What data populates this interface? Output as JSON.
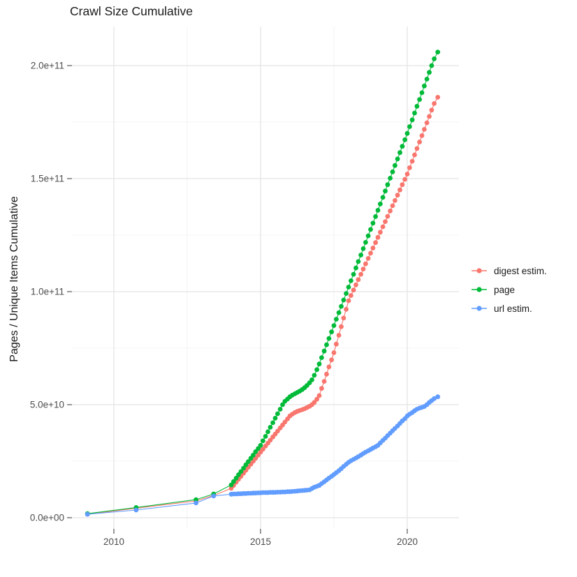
{
  "title": "Crawl Size Cumulative",
  "axes": {
    "y_title": "Pages / Unique Items Cumulative",
    "x_tick_labels": [
      "2010",
      "2015",
      "2020"
    ],
    "y_tick_labels": [
      "0.0e+00",
      "5.0e+10",
      "1.0e+11",
      "1.5e+11",
      "2.0e+11"
    ]
  },
  "legend": {
    "position": "right",
    "items": [
      {
        "label": "digest estim.",
        "color": "#F8766D"
      },
      {
        "label": "page",
        "color": "#00BA38"
      },
      {
        "label": "url estim.",
        "color": "#619CFF"
      }
    ]
  },
  "colors": {
    "background": "#ffffff",
    "grid_major": "#E4E4E4",
    "grid_minor": "#F0F0F0",
    "tick": "#333333",
    "tick_label": "#4D4D4D"
  },
  "chart_data": {
    "type": "scatter",
    "title": "Crawl Size Cumulative",
    "xlabel": "",
    "ylabel": "Pages / Unique Items Cumulative",
    "values_unit": "1e9 pages (y values below are billions)",
    "x_range": [
      2008.6,
      2021.8
    ],
    "y_range_e9": [
      0,
      215
    ],
    "x_major": [
      2010,
      2015,
      2020
    ],
    "x_minor": [
      2012.5,
      2017.5
    ],
    "y_major_e9": [
      0,
      50,
      100,
      150,
      200
    ],
    "y_minor_e9": [
      25,
      75,
      125,
      175
    ],
    "grid": true,
    "legend_position": "right",
    "series": [
      {
        "name": "digest estim.",
        "color": "#F8766D",
        "points": [
          [
            2009.1,
            1.5
          ],
          [
            2010.76,
            4.2
          ],
          [
            2012.8,
            7.4
          ],
          [
            2013.4,
            9.8
          ],
          [
            2014,
            13
          ],
          [
            2014.08,
            14.3
          ],
          [
            2014.17,
            15.7
          ],
          [
            2014.25,
            17
          ],
          [
            2014.33,
            18.3
          ],
          [
            2014.42,
            19.7
          ],
          [
            2014.5,
            21
          ],
          [
            2014.58,
            22.3
          ],
          [
            2014.67,
            23.7
          ],
          [
            2014.75,
            25
          ],
          [
            2014.83,
            26.3
          ],
          [
            2014.92,
            27.7
          ],
          [
            2015,
            29
          ],
          [
            2015.08,
            30.3
          ],
          [
            2015.17,
            31.7
          ],
          [
            2015.25,
            33
          ],
          [
            2015.33,
            34.3
          ],
          [
            2015.42,
            35.7
          ],
          [
            2015.5,
            37
          ],
          [
            2015.58,
            38.3
          ],
          [
            2015.67,
            39.7
          ],
          [
            2015.75,
            41
          ],
          [
            2015.83,
            42.3
          ],
          [
            2015.92,
            43.7
          ],
          [
            2016,
            45
          ],
          [
            2016.08,
            45.8
          ],
          [
            2016.17,
            46.5
          ],
          [
            2016.25,
            47
          ],
          [
            2016.33,
            47.4
          ],
          [
            2016.42,
            47.8
          ],
          [
            2016.5,
            48.2
          ],
          [
            2016.58,
            48.7
          ],
          [
            2016.67,
            49.3
          ],
          [
            2016.75,
            50
          ],
          [
            2016.83,
            51
          ],
          [
            2016.92,
            52.4
          ],
          [
            2017,
            54
          ],
          [
            2017.08,
            57.2
          ],
          [
            2017.17,
            60.3
          ],
          [
            2017.25,
            63.5
          ],
          [
            2017.33,
            66.7
          ],
          [
            2017.42,
            69.8
          ],
          [
            2017.5,
            73
          ],
          [
            2017.58,
            76.8
          ],
          [
            2017.67,
            80.7
          ],
          [
            2017.75,
            84.5
          ],
          [
            2017.83,
            88.3
          ],
          [
            2017.92,
            92.2
          ],
          [
            2018,
            96
          ],
          [
            2018.08,
            98.3
          ],
          [
            2018.17,
            100.7
          ],
          [
            2018.25,
            103
          ],
          [
            2018.33,
            105.3
          ],
          [
            2018.42,
            107.7
          ],
          [
            2018.5,
            110
          ],
          [
            2018.58,
            112.3
          ],
          [
            2018.67,
            114.7
          ],
          [
            2018.75,
            117
          ],
          [
            2018.83,
            119.3
          ],
          [
            2018.92,
            121.7
          ],
          [
            2019,
            124
          ],
          [
            2019.08,
            126.3
          ],
          [
            2019.17,
            128.7
          ],
          [
            2019.25,
            131
          ],
          [
            2019.33,
            133.3
          ],
          [
            2019.42,
            135.7
          ],
          [
            2019.5,
            138
          ],
          [
            2019.58,
            140.3
          ],
          [
            2019.67,
            142.7
          ],
          [
            2019.75,
            145
          ],
          [
            2019.83,
            147.3
          ],
          [
            2019.92,
            149.7
          ],
          [
            2020,
            152
          ],
          [
            2020.08,
            154.8
          ],
          [
            2020.17,
            157.7
          ],
          [
            2020.25,
            160.5
          ],
          [
            2020.33,
            163.3
          ],
          [
            2020.42,
            166.2
          ],
          [
            2020.5,
            169
          ],
          [
            2020.58,
            171.8
          ],
          [
            2020.67,
            174.7
          ],
          [
            2020.75,
            177.5
          ],
          [
            2020.83,
            180.3
          ],
          [
            2020.92,
            183.2
          ],
          [
            2021.04,
            186
          ]
        ]
      },
      {
        "name": "page",
        "color": "#00BA38",
        "points": [
          [
            2009.1,
            1.8
          ],
          [
            2010.76,
            4.5
          ],
          [
            2012.8,
            8
          ],
          [
            2013.4,
            10.5
          ],
          [
            2014,
            14.5
          ],
          [
            2014.08,
            16
          ],
          [
            2014.17,
            17.5
          ],
          [
            2014.25,
            19
          ],
          [
            2014.33,
            20.4
          ],
          [
            2014.42,
            21.9
          ],
          [
            2014.5,
            23.4
          ],
          [
            2014.58,
            24.8
          ],
          [
            2014.67,
            26.3
          ],
          [
            2014.75,
            27.7
          ],
          [
            2014.83,
            29.2
          ],
          [
            2014.92,
            30.6
          ],
          [
            2015,
            32
          ],
          [
            2015.08,
            34
          ],
          [
            2015.17,
            36
          ],
          [
            2015.25,
            38
          ],
          [
            2015.33,
            40
          ],
          [
            2015.42,
            42
          ],
          [
            2015.5,
            44
          ],
          [
            2015.58,
            46
          ],
          [
            2015.67,
            48
          ],
          [
            2015.75,
            50
          ],
          [
            2015.83,
            51.5
          ],
          [
            2015.92,
            52.5
          ],
          [
            2016,
            53.5
          ],
          [
            2016.08,
            54.2
          ],
          [
            2016.17,
            54.8
          ],
          [
            2016.25,
            55.4
          ],
          [
            2016.33,
            56
          ],
          [
            2016.42,
            56.7
          ],
          [
            2016.5,
            57.5
          ],
          [
            2016.58,
            58.5
          ],
          [
            2016.67,
            59.7
          ],
          [
            2016.75,
            61
          ],
          [
            2016.83,
            63
          ],
          [
            2016.92,
            65.5
          ],
          [
            2017,
            68
          ],
          [
            2017.08,
            70.8
          ],
          [
            2017.17,
            73.7
          ],
          [
            2017.25,
            76.5
          ],
          [
            2017.33,
            79.3
          ],
          [
            2017.42,
            82.2
          ],
          [
            2017.5,
            85
          ],
          [
            2017.58,
            87.8
          ],
          [
            2017.67,
            90.7
          ],
          [
            2017.75,
            93.5
          ],
          [
            2017.83,
            96.3
          ],
          [
            2017.92,
            99.2
          ],
          [
            2018,
            102
          ],
          [
            2018.08,
            104.8
          ],
          [
            2018.17,
            107.7
          ],
          [
            2018.25,
            110.5
          ],
          [
            2018.33,
            113.3
          ],
          [
            2018.42,
            116.2
          ],
          [
            2018.5,
            119
          ],
          [
            2018.58,
            121.8
          ],
          [
            2018.67,
            124.7
          ],
          [
            2018.75,
            127.5
          ],
          [
            2018.83,
            130.3
          ],
          [
            2018.92,
            133.2
          ],
          [
            2019,
            136
          ],
          [
            2019.08,
            138.8
          ],
          [
            2019.17,
            141.7
          ],
          [
            2019.25,
            144.5
          ],
          [
            2019.33,
            147.3
          ],
          [
            2019.42,
            150.2
          ],
          [
            2019.5,
            153
          ],
          [
            2019.58,
            155.8
          ],
          [
            2019.67,
            158.7
          ],
          [
            2019.75,
            161.5
          ],
          [
            2019.83,
            164.3
          ],
          [
            2019.92,
            167.2
          ],
          [
            2020,
            170
          ],
          [
            2020.08,
            173
          ],
          [
            2020.17,
            176
          ],
          [
            2020.25,
            179
          ],
          [
            2020.33,
            182
          ],
          [
            2020.42,
            185
          ],
          [
            2020.5,
            188
          ],
          [
            2020.58,
            191
          ],
          [
            2020.67,
            194
          ],
          [
            2020.75,
            197
          ],
          [
            2020.83,
            200
          ],
          [
            2020.92,
            203
          ],
          [
            2021.04,
            206
          ]
        ]
      },
      {
        "name": "url estim.",
        "color": "#619CFF",
        "points": [
          [
            2009.1,
            1.5
          ],
          [
            2010.76,
            3.4
          ],
          [
            2012.8,
            6.5
          ],
          [
            2013.4,
            9.6
          ],
          [
            2014,
            10.4
          ],
          [
            2014.08,
            10.5
          ],
          [
            2014.17,
            10.5
          ],
          [
            2014.25,
            10.6
          ],
          [
            2014.33,
            10.6
          ],
          [
            2014.42,
            10.7
          ],
          [
            2014.5,
            10.7
          ],
          [
            2014.58,
            10.8
          ],
          [
            2014.67,
            10.8
          ],
          [
            2014.75,
            10.9
          ],
          [
            2014.83,
            10.9
          ],
          [
            2014.92,
            11
          ],
          [
            2015,
            11
          ],
          [
            2015.08,
            11.1
          ],
          [
            2015.17,
            11.1
          ],
          [
            2015.25,
            11.1
          ],
          [
            2015.33,
            11.2
          ],
          [
            2015.42,
            11.2
          ],
          [
            2015.5,
            11.2
          ],
          [
            2015.58,
            11.3
          ],
          [
            2015.67,
            11.3
          ],
          [
            2015.75,
            11.4
          ],
          [
            2015.83,
            11.4
          ],
          [
            2015.92,
            11.5
          ],
          [
            2016,
            11.5
          ],
          [
            2016.08,
            11.6
          ],
          [
            2016.17,
            11.7
          ],
          [
            2016.25,
            11.8
          ],
          [
            2016.33,
            11.9
          ],
          [
            2016.42,
            12
          ],
          [
            2016.5,
            12.1
          ],
          [
            2016.58,
            12.2
          ],
          [
            2016.67,
            12.3
          ],
          [
            2016.75,
            12.9
          ],
          [
            2016.83,
            13.5
          ],
          [
            2016.92,
            13.9
          ],
          [
            2017,
            14.3
          ],
          [
            2017.08,
            15.1
          ],
          [
            2017.17,
            15.9
          ],
          [
            2017.25,
            16.7
          ],
          [
            2017.33,
            17.5
          ],
          [
            2017.42,
            18.3
          ],
          [
            2017.5,
            19.1
          ],
          [
            2017.58,
            19.9
          ],
          [
            2017.67,
            20.8
          ],
          [
            2017.75,
            21.7
          ],
          [
            2017.83,
            22.7
          ],
          [
            2017.92,
            23.6
          ],
          [
            2018,
            24.5
          ],
          [
            2018.08,
            25.2
          ],
          [
            2018.17,
            25.8
          ],
          [
            2018.25,
            26.4
          ],
          [
            2018.33,
            27
          ],
          [
            2018.42,
            27.7
          ],
          [
            2018.5,
            28.4
          ],
          [
            2018.58,
            29
          ],
          [
            2018.67,
            29.6
          ],
          [
            2018.75,
            30.2
          ],
          [
            2018.83,
            30.8
          ],
          [
            2018.92,
            31.4
          ],
          [
            2019,
            32
          ],
          [
            2019.08,
            33.1
          ],
          [
            2019.17,
            34.2
          ],
          [
            2019.25,
            35.2
          ],
          [
            2019.33,
            36.3
          ],
          [
            2019.42,
            37.4
          ],
          [
            2019.5,
            38.5
          ],
          [
            2019.58,
            39.5
          ],
          [
            2019.67,
            40.6
          ],
          [
            2019.75,
            41.7
          ],
          [
            2019.83,
            42.8
          ],
          [
            2019.92,
            43.8
          ],
          [
            2020,
            45
          ],
          [
            2020.08,
            45.8
          ],
          [
            2020.17,
            46.5
          ],
          [
            2020.25,
            47.3
          ],
          [
            2020.33,
            48
          ],
          [
            2020.42,
            48.5
          ],
          [
            2020.5,
            48.8
          ],
          [
            2020.58,
            49.2
          ],
          [
            2020.67,
            50
          ],
          [
            2020.75,
            51
          ],
          [
            2020.83,
            51.8
          ],
          [
            2020.92,
            52.7
          ],
          [
            2021.04,
            53.5
          ]
        ]
      }
    ]
  }
}
